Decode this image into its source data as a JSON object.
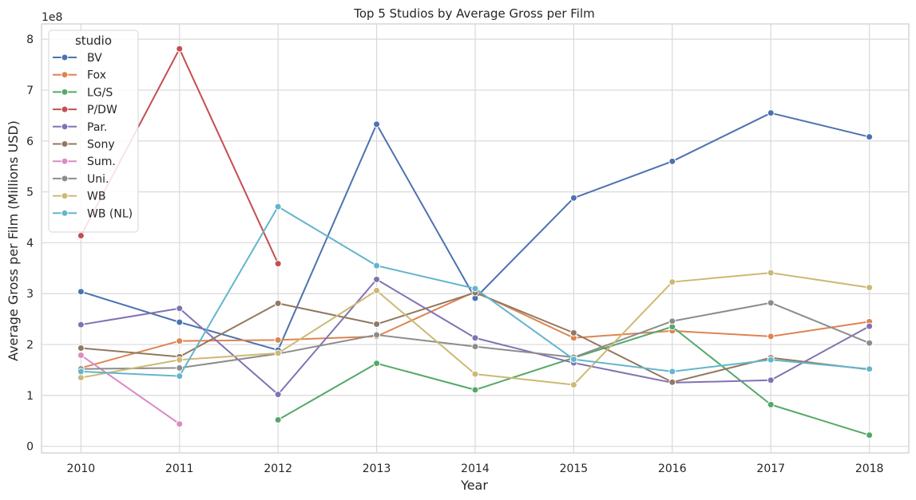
{
  "chart_data": {
    "type": "line",
    "title": "Top 5 Studios by Average Gross per Film",
    "xlabel": "Year",
    "ylabel": "Average Gross per Film (Millions USD)",
    "y_offset_label": "1e8",
    "x": [
      2010,
      2011,
      2012,
      2013,
      2014,
      2015,
      2016,
      2017,
      2018
    ],
    "xticks": [
      "2010",
      "2011",
      "2012",
      "2013",
      "2014",
      "2015",
      "2016",
      "2017",
      "2018"
    ],
    "yticks": [
      "0",
      "1",
      "2",
      "3",
      "4",
      "5",
      "6",
      "7",
      "8"
    ],
    "ylim": [
      -0.13,
      8.3
    ],
    "xlim": [
      2009.6,
      2018.4
    ],
    "grid": true,
    "legend": {
      "title": "studio",
      "position": "top-left"
    },
    "series": [
      {
        "name": "BV",
        "color": "#4c72b0",
        "values": [
          3.04,
          2.44,
          1.89,
          6.33,
          2.91,
          4.88,
          5.6,
          6.55,
          6.08
        ]
      },
      {
        "name": "Fox",
        "color": "#dd8452",
        "values": [
          1.54,
          2.07,
          2.09,
          2.16,
          3.04,
          2.13,
          2.27,
          2.16,
          2.45
        ]
      },
      {
        "name": "LG/S",
        "color": "#55a868",
        "values": [
          null,
          null,
          0.52,
          1.63,
          1.11,
          1.74,
          2.35,
          0.82,
          0.22
        ]
      },
      {
        "name": "P/DW",
        "color": "#c44e52",
        "values": [
          4.14,
          7.81,
          3.59,
          null,
          null,
          null,
          null,
          null,
          null
        ]
      },
      {
        "name": "Par.",
        "color": "#8172b3",
        "values": [
          2.39,
          2.71,
          1.02,
          3.28,
          2.13,
          1.64,
          1.25,
          1.3,
          2.36
        ]
      },
      {
        "name": "Sony",
        "color": "#937860",
        "values": [
          1.93,
          1.76,
          2.81,
          2.4,
          3.02,
          2.23,
          1.26,
          1.74,
          1.51
        ]
      },
      {
        "name": "Sum.",
        "color": "#da8bc3",
        "values": [
          1.79,
          0.44,
          null,
          null,
          null,
          null,
          null,
          null,
          null
        ]
      },
      {
        "name": "Uni.",
        "color": "#8c8c8c",
        "values": [
          1.52,
          1.54,
          1.82,
          2.19,
          1.96,
          1.75,
          2.46,
          2.82,
          2.03
        ]
      },
      {
        "name": "WB",
        "color": "#ccb974",
        "values": [
          1.35,
          1.7,
          1.83,
          3.06,
          1.42,
          1.21,
          3.23,
          3.41,
          3.12
        ]
      },
      {
        "name": "WB (NL)",
        "color": "#64b5cd",
        "values": [
          1.47,
          1.38,
          4.71,
          3.55,
          3.1,
          1.71,
          1.47,
          1.7,
          1.52
        ]
      }
    ]
  }
}
